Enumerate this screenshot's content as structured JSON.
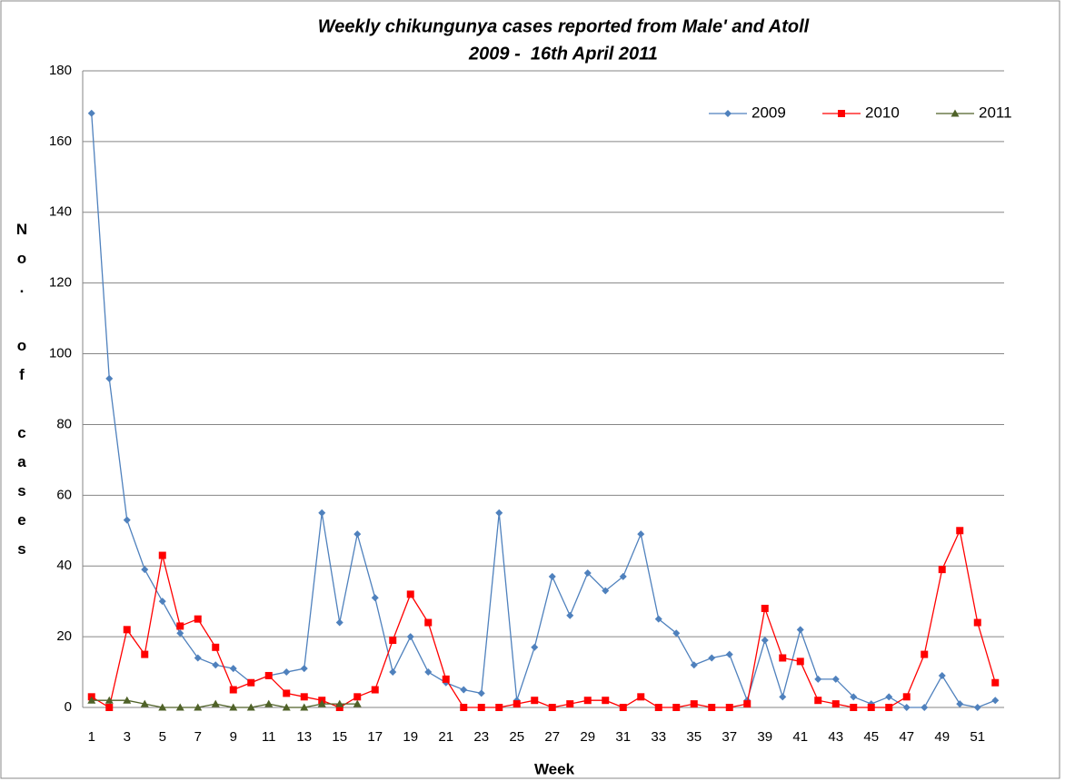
{
  "chart_data": {
    "type": "line",
    "title": "Weekly chikungunya cases reported from Male' and Atoll",
    "subtitle": "2009 -  16th April 2011",
    "x_label": "Week",
    "y_label": "No. of cases",
    "categories": [
      1,
      null,
      3,
      null,
      5,
      null,
      7,
      null,
      9,
      null,
      11,
      null,
      13,
      null,
      15,
      null,
      17,
      null,
      19,
      null,
      21,
      null,
      23,
      null,
      25,
      null,
      27,
      null,
      29,
      null,
      31,
      null,
      33,
      null,
      35,
      null,
      37,
      null,
      39,
      null,
      41,
      null,
      43,
      null,
      45,
      null,
      47,
      null,
      49,
      null,
      51,
      null
    ],
    "series": [
      {
        "name": "2009",
        "color": "#4f81bd",
        "marker": "diamond",
        "values": [
          168,
          93,
          53,
          39,
          30,
          21,
          14,
          12,
          11,
          7,
          9,
          10,
          11,
          55,
          24,
          49,
          31,
          10,
          20,
          10,
          7,
          5,
          4,
          55,
          2,
          17,
          37,
          26,
          38,
          33,
          37,
          49,
          25,
          21,
          12,
          14,
          15,
          2,
          19,
          3,
          22,
          8,
          8,
          3,
          1,
          3,
          0,
          0,
          9,
          1,
          0,
          2
        ]
      },
      {
        "name": "2010",
        "color": "#ff0000",
        "marker": "square",
        "values": [
          3,
          0,
          22,
          15,
          43,
          23,
          25,
          17,
          5,
          7,
          9,
          4,
          3,
          2,
          0,
          3,
          5,
          19,
          32,
          24,
          8,
          0,
          0,
          0,
          1,
          2,
          0,
          1,
          2,
          2,
          0,
          3,
          0,
          0,
          1,
          0,
          0,
          1,
          28,
          14,
          13,
          2,
          1,
          0,
          0,
          0,
          3,
          15,
          39,
          50,
          24,
          7
        ]
      },
      {
        "name": "2011",
        "color": "#4f6228",
        "marker": "triangle",
        "values": [
          2,
          2,
          2,
          1,
          0,
          0,
          0,
          1,
          0,
          0,
          1,
          0,
          0,
          1,
          1,
          1,
          null,
          null,
          null,
          null,
          null,
          null,
          null,
          null,
          null,
          null,
          null,
          null,
          null,
          null,
          null,
          null,
          null,
          null,
          null,
          null,
          null,
          null,
          null,
          null,
          null,
          null,
          null,
          null,
          null,
          null,
          null,
          null,
          null,
          null,
          null,
          null
        ]
      }
    ],
    "ylim": [
      0,
      180
    ],
    "yticks": [
      0,
      20,
      40,
      60,
      80,
      100,
      120,
      140,
      160,
      180
    ],
    "grid": true,
    "legend": "top-right"
  }
}
